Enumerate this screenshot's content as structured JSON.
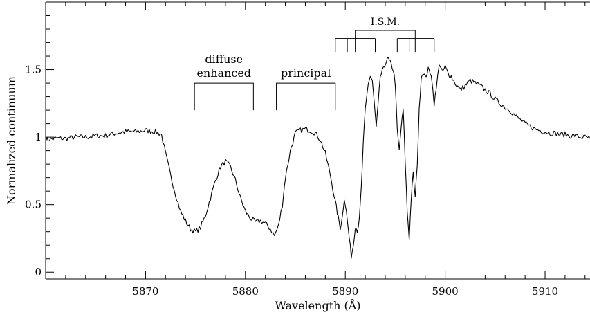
{
  "chart_data": {
    "type": "line",
    "xlabel": "Wavelength (Å)",
    "ylabel": "Normalized continuum",
    "xlim": [
      5860,
      5914.5
    ],
    "ylim": [
      -0.05,
      2.0
    ],
    "x_ticks": [
      5870,
      5880,
      5890,
      5900,
      5910
    ],
    "x_tick_labels": [
      "5870",
      "5880",
      "5890",
      "5900",
      "5910"
    ],
    "y_ticks": [
      0,
      0.5,
      1,
      1.5
    ],
    "y_tick_labels": [
      "0",
      "0.5",
      "1",
      "1.5"
    ],
    "grid": false,
    "annotations": {
      "diffuse": {
        "lines": [
          "diffuse",
          "enhanced"
        ],
        "x_range": [
          5874.9,
          5880.8
        ],
        "y_bracket": 1.4,
        "y_drop": 1.2
      },
      "principal": {
        "label": "principal",
        "x_range": [
          5883.1,
          5889.0
        ],
        "y_bracket": 1.4,
        "y_drop": 1.2
      },
      "ism": {
        "label": "I.S.M.",
        "top": {
          "x_range": [
            5891.0,
            5897.0
          ],
          "y": 1.79
        },
        "left_group": {
          "x_range": [
            5889.0,
            5893.0
          ],
          "y": 1.73,
          "legs": [
            5889.0,
            5890.2,
            5891.0,
            5893.0
          ],
          "y_drop": 1.63
        },
        "right_group": {
          "x_range": [
            5895.2,
            5898.9
          ],
          "y": 1.73,
          "legs": [
            5895.2,
            5896.4,
            5897.0,
            5898.9
          ],
          "y_drop": 1.63
        }
      }
    },
    "series": [
      {
        "x": [
          5860.0,
          5861.0,
          5862.0,
          5863.0,
          5864.0,
          5865.0,
          5866.0,
          5867.0,
          5868.0,
          5869.0,
          5870.0,
          5871.0,
          5871.6,
          5872.0,
          5872.5,
          5873.0,
          5873.5,
          5874.0,
          5874.5,
          5875.0,
          5875.5,
          5876.0,
          5876.5,
          5877.0,
          5877.5,
          5878.0,
          5878.5,
          5879.0,
          5879.5,
          5880.0,
          5880.5,
          5881.0,
          5881.5,
          5882.0,
          5882.5,
          5882.9,
          5883.3,
          5883.7,
          5884.0,
          5884.5,
          5885.0,
          5885.5,
          5886.0,
          5886.5,
          5887.0,
          5887.5,
          5888.0,
          5888.5,
          5889.0,
          5889.3,
          5889.5,
          5889.7,
          5889.9,
          5890.1,
          5890.4,
          5890.6,
          5890.8,
          5891.0,
          5891.2,
          5891.4,
          5891.6,
          5891.8,
          5892.0,
          5892.3,
          5892.5,
          5892.7,
          5892.9,
          5893.1,
          5893.3,
          5893.5,
          5893.8,
          5894.0,
          5894.3,
          5894.5,
          5894.8,
          5895.0,
          5895.2,
          5895.4,
          5895.6,
          5895.8,
          5896.0,
          5896.2,
          5896.4,
          5896.6,
          5896.8,
          5897.0,
          5897.2,
          5897.4,
          5897.6,
          5897.8,
          5898.0,
          5898.3,
          5898.6,
          5898.9,
          5899.1,
          5899.4,
          5899.7,
          5900.0,
          5900.3,
          5900.6,
          5901.0,
          5901.5,
          5902.0,
          5902.5,
          5903.0,
          5903.5,
          5904.0,
          5904.5,
          5905.0,
          5905.5,
          5906.0,
          5906.5,
          5907.0,
          5907.5,
          5908.0,
          5908.5,
          5909.0,
          5909.5,
          5910.0,
          5910.5,
          5911.0,
          5911.5,
          5912.0,
          5912.5,
          5913.0,
          5913.5,
          5914.0,
          5914.5
        ],
        "y": [
          0.98,
          0.99,
          0.99,
          1.0,
          1.0,
          1.01,
          1.01,
          1.03,
          1.04,
          1.04,
          1.05,
          1.04,
          1.02,
          0.88,
          0.72,
          0.58,
          0.45,
          0.38,
          0.32,
          0.3,
          0.33,
          0.42,
          0.55,
          0.68,
          0.78,
          0.82,
          0.78,
          0.68,
          0.55,
          0.45,
          0.4,
          0.37,
          0.38,
          0.36,
          0.32,
          0.27,
          0.34,
          0.5,
          0.7,
          0.9,
          1.03,
          1.05,
          1.06,
          1.05,
          1.03,
          0.98,
          0.88,
          0.72,
          0.52,
          0.4,
          0.33,
          0.41,
          0.55,
          0.45,
          0.25,
          0.12,
          0.2,
          0.34,
          0.31,
          0.38,
          0.62,
          0.95,
          1.2,
          1.4,
          1.45,
          1.42,
          1.25,
          1.07,
          1.25,
          1.45,
          1.5,
          1.55,
          1.58,
          1.55,
          1.5,
          1.4,
          1.05,
          0.9,
          1.08,
          1.2,
          0.82,
          0.45,
          0.25,
          0.55,
          0.73,
          0.55,
          0.8,
          1.2,
          1.45,
          1.48,
          1.44,
          1.5,
          1.47,
          1.25,
          1.35,
          1.55,
          1.48,
          1.52,
          1.47,
          1.45,
          1.4,
          1.35,
          1.38,
          1.42,
          1.4,
          1.38,
          1.35,
          1.32,
          1.28,
          1.25,
          1.22,
          1.2,
          1.16,
          1.13,
          1.1,
          1.08,
          1.06,
          1.05,
          1.04,
          1.03,
          1.03,
          1.02,
          1.02,
          1.01,
          1.01,
          1.0,
          1.0,
          0.99
        ]
      }
    ]
  }
}
